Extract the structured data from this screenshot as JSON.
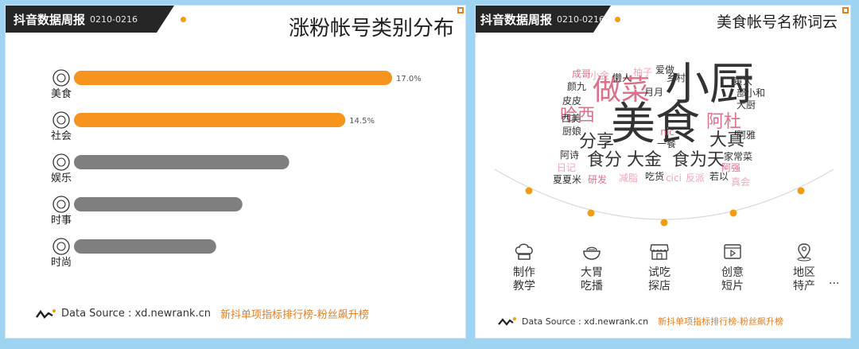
{
  "left": {
    "brand": "抖音数据周报",
    "date_range": "0210-0216",
    "title": "涨粉帐号类别分布",
    "footer_source": "Data Source : xd.newrank.cn",
    "footer_highlight": "新抖单项指标排行榜-粉丝飙升榜"
  },
  "right": {
    "brand": "抖音数据周报",
    "date_range": "0210-0216",
    "title": "美食帐号名称词云",
    "footer_source": "Data Source : xd.newrank.cn",
    "footer_highlight": "新抖单项指标排行榜-粉丝飙升榜",
    "more": "...",
    "features": [
      {
        "line1": "制作",
        "line2": "教学",
        "icon": "chef-hat-icon"
      },
      {
        "line1": "大胃",
        "line2": "吃播",
        "icon": "bowl-icon"
      },
      {
        "line1": "试吃",
        "line2": "探店",
        "icon": "storefront-icon"
      },
      {
        "line1": "创意",
        "line2": "短片",
        "icon": "video-play-icon"
      },
      {
        "line1": "地区",
        "line2": "特产",
        "icon": "location-pin-icon"
      }
    ]
  },
  "colors": {
    "accent": "#f39c12",
    "bar_orange": "#f7941d",
    "bar_gray": "#7f7f7f",
    "header": "#262626",
    "word_dark": "#333333",
    "word_pink": "#e0708a",
    "word_light_pink": "#f2a7b8",
    "background": "#9fd3f2"
  },
  "chart_data": [
    {
      "type": "bar",
      "orientation": "horizontal",
      "categories": [
        "美食",
        "社会",
        "娱乐",
        "时事",
        "时尚"
      ],
      "icons": [
        "food-icon",
        "society-icon",
        "entertainment-icon",
        "news-icon",
        "fashion-icon"
      ],
      "values": [
        17.0,
        14.5,
        11.5,
        9.0,
        7.6
      ],
      "data_labels": [
        "17.0%",
        "14.5%",
        "",
        "",
        ""
      ],
      "highlight": [
        true,
        true,
        false,
        false,
        false
      ],
      "xlim": [
        0,
        17.0
      ],
      "grid": false,
      "legend": "none"
    },
    {
      "type": "wordcloud",
      "words": [
        {
          "text": "小厨",
          "weight": 100,
          "color": "dark"
        },
        {
          "text": "美食",
          "weight": 100,
          "color": "dark"
        },
        {
          "text": "做菜",
          "weight": 70,
          "color": "pink"
        },
        {
          "text": "哈西",
          "weight": 45,
          "color": "pink"
        },
        {
          "text": "阿杜",
          "weight": 45,
          "color": "pink"
        },
        {
          "text": "大真",
          "weight": 45,
          "color": "dark"
        },
        {
          "text": "分享",
          "weight": 42,
          "color": "dark"
        },
        {
          "text": "大金",
          "weight": 42,
          "color": "dark"
        },
        {
          "text": "食分",
          "weight": 42,
          "color": "dark"
        },
        {
          "text": "食为天",
          "weight": 42,
          "color": "dark"
        },
        {
          "text": "成哥",
          "weight": 18,
          "color": "pink"
        },
        {
          "text": "小金",
          "weight": 18,
          "color": "light_pink"
        },
        {
          "text": "懒人",
          "weight": 18,
          "color": "dark"
        },
        {
          "text": "柚子",
          "weight": 18,
          "color": "light_pink"
        },
        {
          "text": "爱做",
          "weight": 18,
          "color": "dark"
        },
        {
          "text": "乡村",
          "weight": 16,
          "color": "dark"
        },
        {
          "text": "黄大",
          "weight": 16,
          "color": "dark"
        },
        {
          "text": "颜九",
          "weight": 18,
          "color": "dark"
        },
        {
          "text": "月月",
          "weight": 18,
          "color": "dark"
        },
        {
          "text": "部小和",
          "weight": 16,
          "color": "dark"
        },
        {
          "text": "皮皮",
          "weight": 18,
          "color": "dark"
        },
        {
          "text": "大厨",
          "weight": 16,
          "color": "dark"
        },
        {
          "text": "西美",
          "weight": 16,
          "color": "dark"
        },
        {
          "text": "阿雅",
          "weight": 16,
          "color": "dark"
        },
        {
          "text": "厨娘",
          "weight": 16,
          "color": "dark"
        },
        {
          "text": "nic",
          "weight": 16,
          "color": "pink"
        },
        {
          "text": "一餐",
          "weight": 16,
          "color": "dark"
        },
        {
          "text": "家常菜",
          "weight": 16,
          "color": "dark"
        },
        {
          "text": "阿诗",
          "weight": 16,
          "color": "dark"
        },
        {
          "text": "日记",
          "weight": 16,
          "color": "light_pink"
        },
        {
          "text": "阿强",
          "weight": 16,
          "color": "pink"
        },
        {
          "text": "夏夏米",
          "weight": 16,
          "color": "dark"
        },
        {
          "text": "研发",
          "weight": 16,
          "color": "pink"
        },
        {
          "text": "减脂",
          "weight": 16,
          "color": "light_pink"
        },
        {
          "text": "吃货",
          "weight": 16,
          "color": "dark"
        },
        {
          "text": "cici",
          "weight": 16,
          "color": "light_pink"
        },
        {
          "text": "反派",
          "weight": 16,
          "color": "light_pink"
        },
        {
          "text": "若以",
          "weight": 16,
          "color": "dark"
        },
        {
          "text": "真会",
          "weight": 16,
          "color": "light_pink"
        }
      ]
    }
  ]
}
